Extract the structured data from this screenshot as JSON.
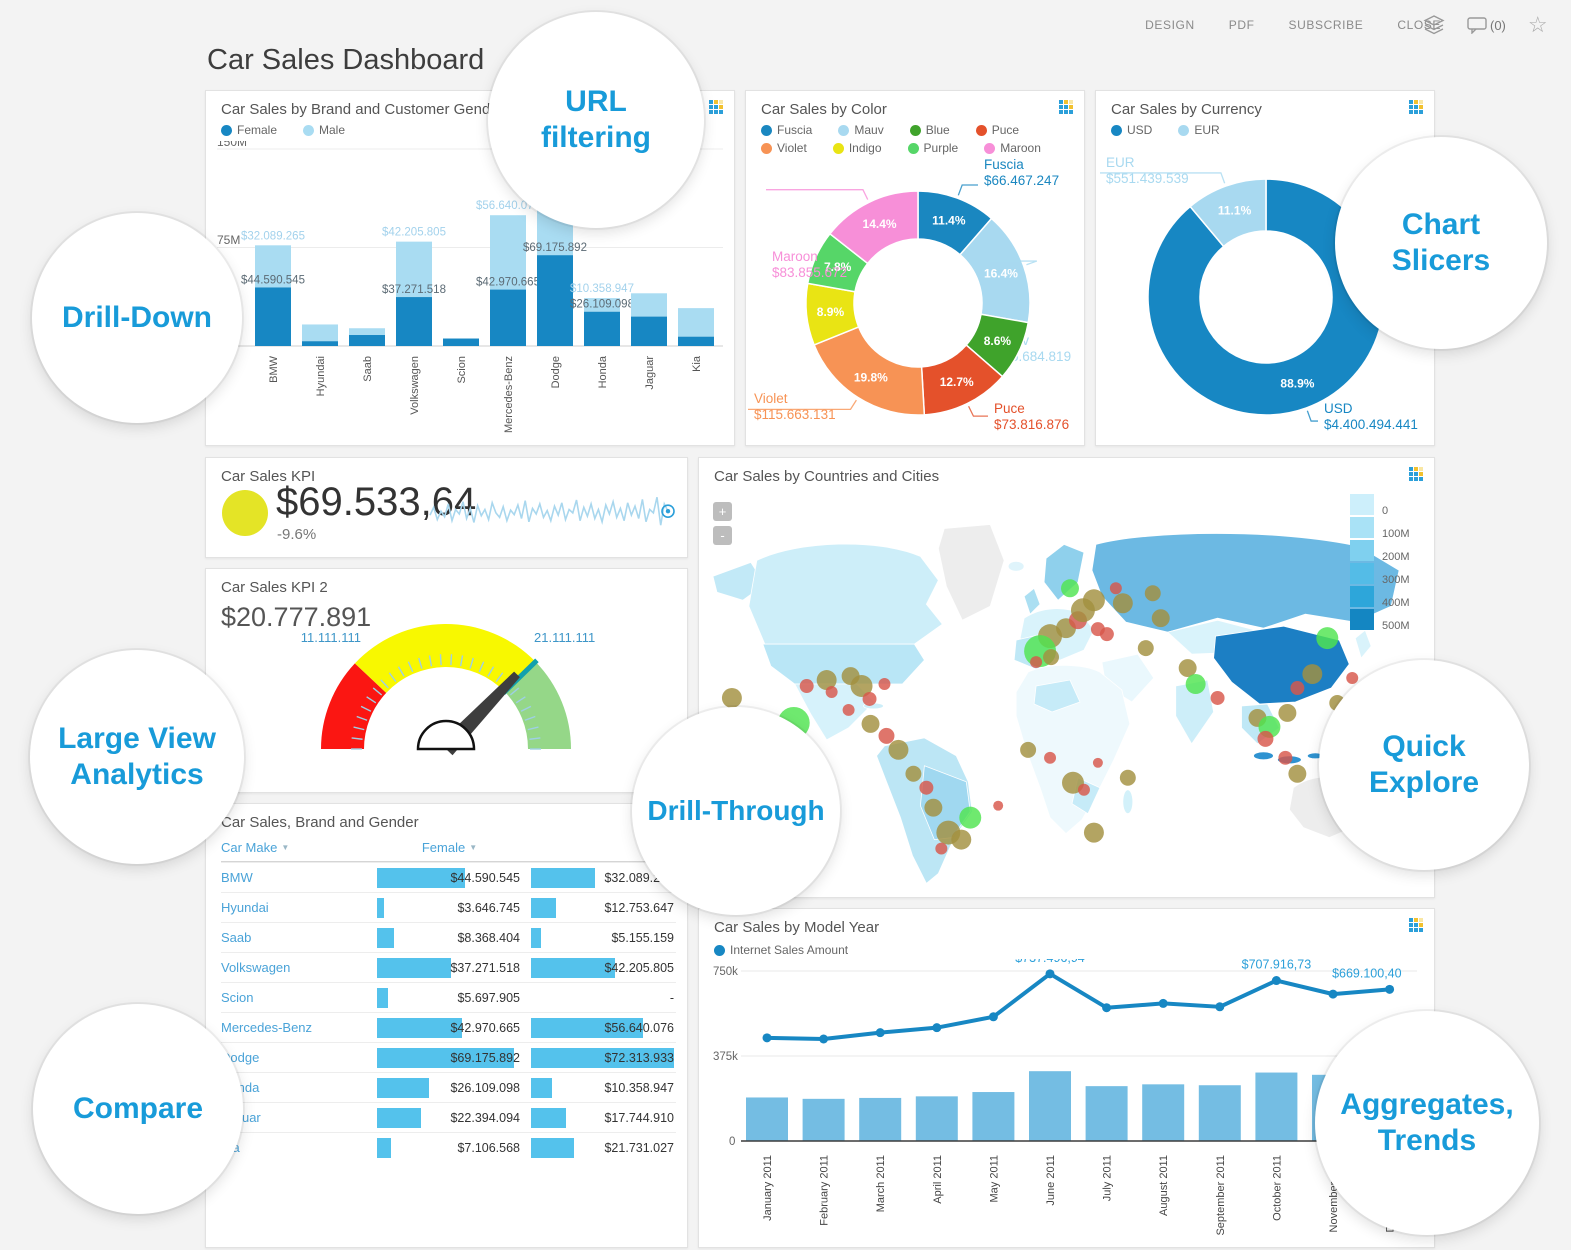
{
  "page": {
    "title": "Car Sales Dashboard",
    "menu": [
      "DESIGN",
      "PDF",
      "SUBSCRIBE",
      "CLOSE"
    ],
    "comment_count": "(0)",
    "accent_color": "#189bd9"
  },
  "callouts": {
    "url_filtering": "URL filtering",
    "chart_slicers": "Chart Slicers",
    "drill_down": "Drill-Down",
    "large_view": "Large View Analytics",
    "drill_through": "Drill-Through",
    "quick_explore": "Quick Explore",
    "compare": "Compare",
    "aggregates": "Aggregates, Trends"
  },
  "chart_data": {
    "brand_gender": {
      "type": "bar",
      "title": "Car Sales by Brand and Customer Gender",
      "legend": [
        "Female",
        "Male"
      ],
      "y_ticks": [
        "150M",
        "75M"
      ],
      "ylim_millions": [
        0,
        150
      ],
      "categories": [
        "BMW",
        "Hyundai",
        "Saab",
        "Volkswagen",
        "Scion",
        "Mercedes-Benz",
        "Dodge",
        "Honda",
        "Jaguar",
        "Kia"
      ],
      "series": [
        {
          "name": "Female",
          "color": "#1787c3",
          "values_millions": [
            44.590545,
            3.646745,
            8.368404,
            37.271518,
            5.697905,
            42.970665,
            69.175892,
            26.109098,
            22.394094,
            7.106568
          ]
        },
        {
          "name": "Male",
          "color": "#a9dcf2",
          "values_millions": [
            32.089265,
            12.753647,
            5.155159,
            42.205805,
            0,
            56.640076,
            72.313933,
            10.358947,
            17.74491,
            21.731027
          ]
        }
      ],
      "female_labels": [
        "$44.590.545",
        "",
        "",
        "$37.271.518",
        "",
        "$42.970.665",
        "$69.175.892",
        "$26.109.098",
        "",
        ""
      ],
      "male_labels": [
        "$32.089.265",
        "",
        "",
        "$42.205.805",
        "",
        "$56.640.076",
        "",
        "$10.358.947",
        "",
        ""
      ]
    },
    "by_color": {
      "type": "pie",
      "title": "Car Sales by Color",
      "slices": [
        {
          "name": "Fuscia",
          "pct": 11.4,
          "color": "#1a87c0",
          "value": "$66.467.247",
          "callout": true
        },
        {
          "name": "Mauv",
          "pct": 16.4,
          "color": "#a8d9f0",
          "value": "$95.684.819",
          "callout": true
        },
        {
          "name": "Blue",
          "pct": 8.6,
          "color": "#3fa32b",
          "value": "",
          "callout": false
        },
        {
          "name": "Puce",
          "pct": 12.7,
          "color": "#e4512b",
          "value": "$73.816.876",
          "callout": true
        },
        {
          "name": "Violet",
          "pct": 19.8,
          "color": "#f79355",
          "value": "$115.663.131",
          "callout": true
        },
        {
          "name": "Indigo",
          "pct": 8.9,
          "color": "#e9e414",
          "value": "",
          "callout": false
        },
        {
          "name": "Purple",
          "pct": 7.8,
          "color": "#56d668",
          "value": "",
          "callout": false
        },
        {
          "name": "Maroon",
          "pct": 14.4,
          "color": "#f78fd8",
          "value": "$83.855.672",
          "callout": true
        }
      ]
    },
    "by_currency": {
      "type": "pie",
      "title": "Car Sales by Currency",
      "slices": [
        {
          "name": "USD",
          "pct": 88.9,
          "color": "#1787c3",
          "value": "$4.400.494.441",
          "callout": true
        },
        {
          "name": "EUR",
          "pct": 11.1,
          "color": "#a8d9f0",
          "value": "$551.439.539",
          "callout": true
        }
      ]
    },
    "kpi": {
      "type": "kpi",
      "title": "Car Sales KPI",
      "value": "$69.533,64",
      "delta": "-9.6%",
      "indicator_color": "#e4e426",
      "spark": [
        48,
        62,
        40,
        55,
        45,
        68,
        38,
        58,
        50,
        72,
        42,
        60,
        35,
        65,
        47,
        58,
        40,
        70,
        52,
        44,
        63,
        38,
        57,
        49,
        66,
        42,
        74,
        36,
        60,
        50,
        68,
        44,
        56,
        38,
        64,
        48,
        70,
        40,
        58,
        52,
        75,
        38,
        62,
        46,
        68,
        42,
        58,
        36,
        66,
        50,
        72,
        44,
        60,
        38,
        70,
        48,
        64,
        42,
        76,
        36,
        58,
        52,
        80,
        30,
        68,
        55
      ]
    },
    "kpi2": {
      "type": "gauge",
      "title": "Car Sales KPI 2",
      "value_text": "$20.777.891",
      "value": 20777891,
      "scale_max": 28000000,
      "tick_labels": [
        "11.111.111",
        "21.111.111"
      ],
      "zones": [
        {
          "from": 0,
          "to": 0.24,
          "color": "#fb1612"
        },
        {
          "from": 0.24,
          "to": 0.754,
          "color": "#f8f800"
        },
        {
          "from": 0.754,
          "to": 1,
          "color": "#95d788"
        }
      ],
      "marker": {
        "frac": 0.754,
        "color": "#12a0ad"
      },
      "needle_color": "#3e3e3e"
    },
    "map": {
      "type": "map",
      "title": "Car Sales by Countries and Cities",
      "zoom_in": "+",
      "zoom_out": "-",
      "legend_labels": [
        "0",
        "100M",
        "200M",
        "300M",
        "400M",
        "500M"
      ],
      "legend_colors": [
        "#cdeffb",
        "#a9e2f6",
        "#7fd0ef",
        "#54bce7",
        "#2da6da",
        "#1486c2"
      ],
      "bubble_colors": {
        "o": "#a2903f",
        "r": "#d8574a",
        "g": "#4fe44f"
      },
      "bubbles": [
        [
          33,
          210,
          10,
          "o"
        ],
        [
          95,
          235,
          16,
          "g"
        ],
        [
          108,
          198,
          7,
          "r"
        ],
        [
          128,
          192,
          10,
          "o"
        ],
        [
          133,
          204,
          6,
          "r"
        ],
        [
          152,
          188,
          9,
          "o"
        ],
        [
          163,
          198,
          11,
          "o"
        ],
        [
          171,
          211,
          7,
          "r"
        ],
        [
          150,
          222,
          6,
          "r"
        ],
        [
          186,
          196,
          6,
          "r"
        ],
        [
          172,
          236,
          9,
          "o"
        ],
        [
          188,
          248,
          8,
          "r"
        ],
        [
          200,
          262,
          10,
          "o"
        ],
        [
          215,
          286,
          8,
          "o"
        ],
        [
          228,
          300,
          7,
          "r"
        ],
        [
          235,
          320,
          9,
          "o"
        ],
        [
          250,
          345,
          12,
          "o"
        ],
        [
          263,
          352,
          10,
          "o"
        ],
        [
          243,
          361,
          6,
          "r"
        ],
        [
          272,
          330,
          11,
          "g"
        ],
        [
          300,
          318,
          5,
          "r"
        ],
        [
          330,
          262,
          8,
          "o"
        ],
        [
          352,
          270,
          6,
          "r"
        ],
        [
          375,
          295,
          11,
          "o"
        ],
        [
          386,
          302,
          6,
          "r"
        ],
        [
          396,
          345,
          10,
          "o"
        ],
        [
          400,
          275,
          5,
          "r"
        ],
        [
          430,
          290,
          8,
          "o"
        ],
        [
          352,
          148,
          12,
          "o"
        ],
        [
          342,
          163,
          16,
          "g"
        ],
        [
          353,
          169,
          8,
          "o"
        ],
        [
          338,
          174,
          6,
          "r"
        ],
        [
          368,
          140,
          10,
          "o"
        ],
        [
          380,
          132,
          9,
          "r"
        ],
        [
          385,
          122,
          12,
          "o"
        ],
        [
          396,
          112,
          11,
          "o"
        ],
        [
          372,
          100,
          9,
          "g"
        ],
        [
          400,
          141,
          7,
          "r"
        ],
        [
          409,
          146,
          7,
          "r"
        ],
        [
          425,
          115,
          10,
          "o"
        ],
        [
          418,
          100,
          6,
          "r"
        ],
        [
          448,
          160,
          8,
          "o"
        ],
        [
          463,
          130,
          9,
          "o"
        ],
        [
          490,
          180,
          9,
          "o"
        ],
        [
          498,
          196,
          10,
          "g"
        ],
        [
          520,
          210,
          7,
          "r"
        ],
        [
          560,
          230,
          9,
          "o"
        ],
        [
          572,
          239,
          11,
          "g"
        ],
        [
          568,
          251,
          8,
          "r"
        ],
        [
          590,
          225,
          9,
          "o"
        ],
        [
          600,
          200,
          7,
          "r"
        ],
        [
          615,
          186,
          10,
          "o"
        ],
        [
          630,
          150,
          11,
          "g"
        ],
        [
          640,
          215,
          8,
          "o"
        ],
        [
          655,
          190,
          6,
          "r"
        ],
        [
          588,
          270,
          7,
          "r"
        ],
        [
          600,
          286,
          9,
          "o"
        ],
        [
          455,
          105,
          8,
          "o"
        ]
      ]
    },
    "table": {
      "type": "table",
      "title": "Car Sales, Brand and Gender",
      "col1": "Car Make",
      "col2": "Female",
      "max_value_millions": 72.313933,
      "rows": [
        [
          "BMW",
          "$44.590.545",
          44.590545,
          "$32.089.265",
          32.089265
        ],
        [
          "Hyundai",
          "$3.646.745",
          3.646745,
          "$12.753.647",
          12.753647
        ],
        [
          "Saab",
          "$8.368.404",
          8.368404,
          "$5.155.159",
          5.155159
        ],
        [
          "Volkswagen",
          "$37.271.518",
          37.271518,
          "$42.205.805",
          42.205805
        ],
        [
          "Scion",
          "$5.697.905",
          5.697905,
          "-",
          0
        ],
        [
          "Mercedes-Benz",
          "$42.970.665",
          42.970665,
          "$56.640.076",
          56.640076
        ],
        [
          "Dodge",
          "$69.175.892",
          69.175892,
          "$72.313.933",
          72.313933
        ],
        [
          "Honda",
          "$26.109.098",
          26.109098,
          "$10.358.947",
          10.358947
        ],
        [
          "Jaguar",
          "$22.394.094",
          22.394094,
          "$17.744.910",
          17.74491
        ],
        [
          "Kia",
          "$7.106.568",
          7.106568,
          "$21.731.027",
          21.731027
        ]
      ]
    },
    "model_year": {
      "type": "line",
      "title": "Car Sales by Model Year",
      "legend": [
        "Internet Sales Amount"
      ],
      "y_ticks": [
        "750k",
        "375k",
        "0"
      ],
      "months": [
        "January 2011",
        "February 2011",
        "March 2011",
        "April 2011",
        "May 2011",
        "June 2011",
        "July 2011",
        "August 2011",
        "September 2011",
        "October 2011",
        "November 2011",
        "December 2011"
      ],
      "line_k": [
        455,
        450,
        478,
        500,
        548,
        737.5,
        588,
        607,
        592,
        707.9,
        648,
        669.1
      ],
      "bars_k": [
        192,
        186,
        190,
        197,
        216,
        308,
        242,
        250,
        246,
        302,
        292,
        255
      ],
      "line_color": "#1787c3",
      "bar_color": "#74bde3",
      "point_labels": {
        "5": "$737.496,94",
        "9": "$707.916,73",
        "11": "$669.100,40"
      }
    }
  }
}
